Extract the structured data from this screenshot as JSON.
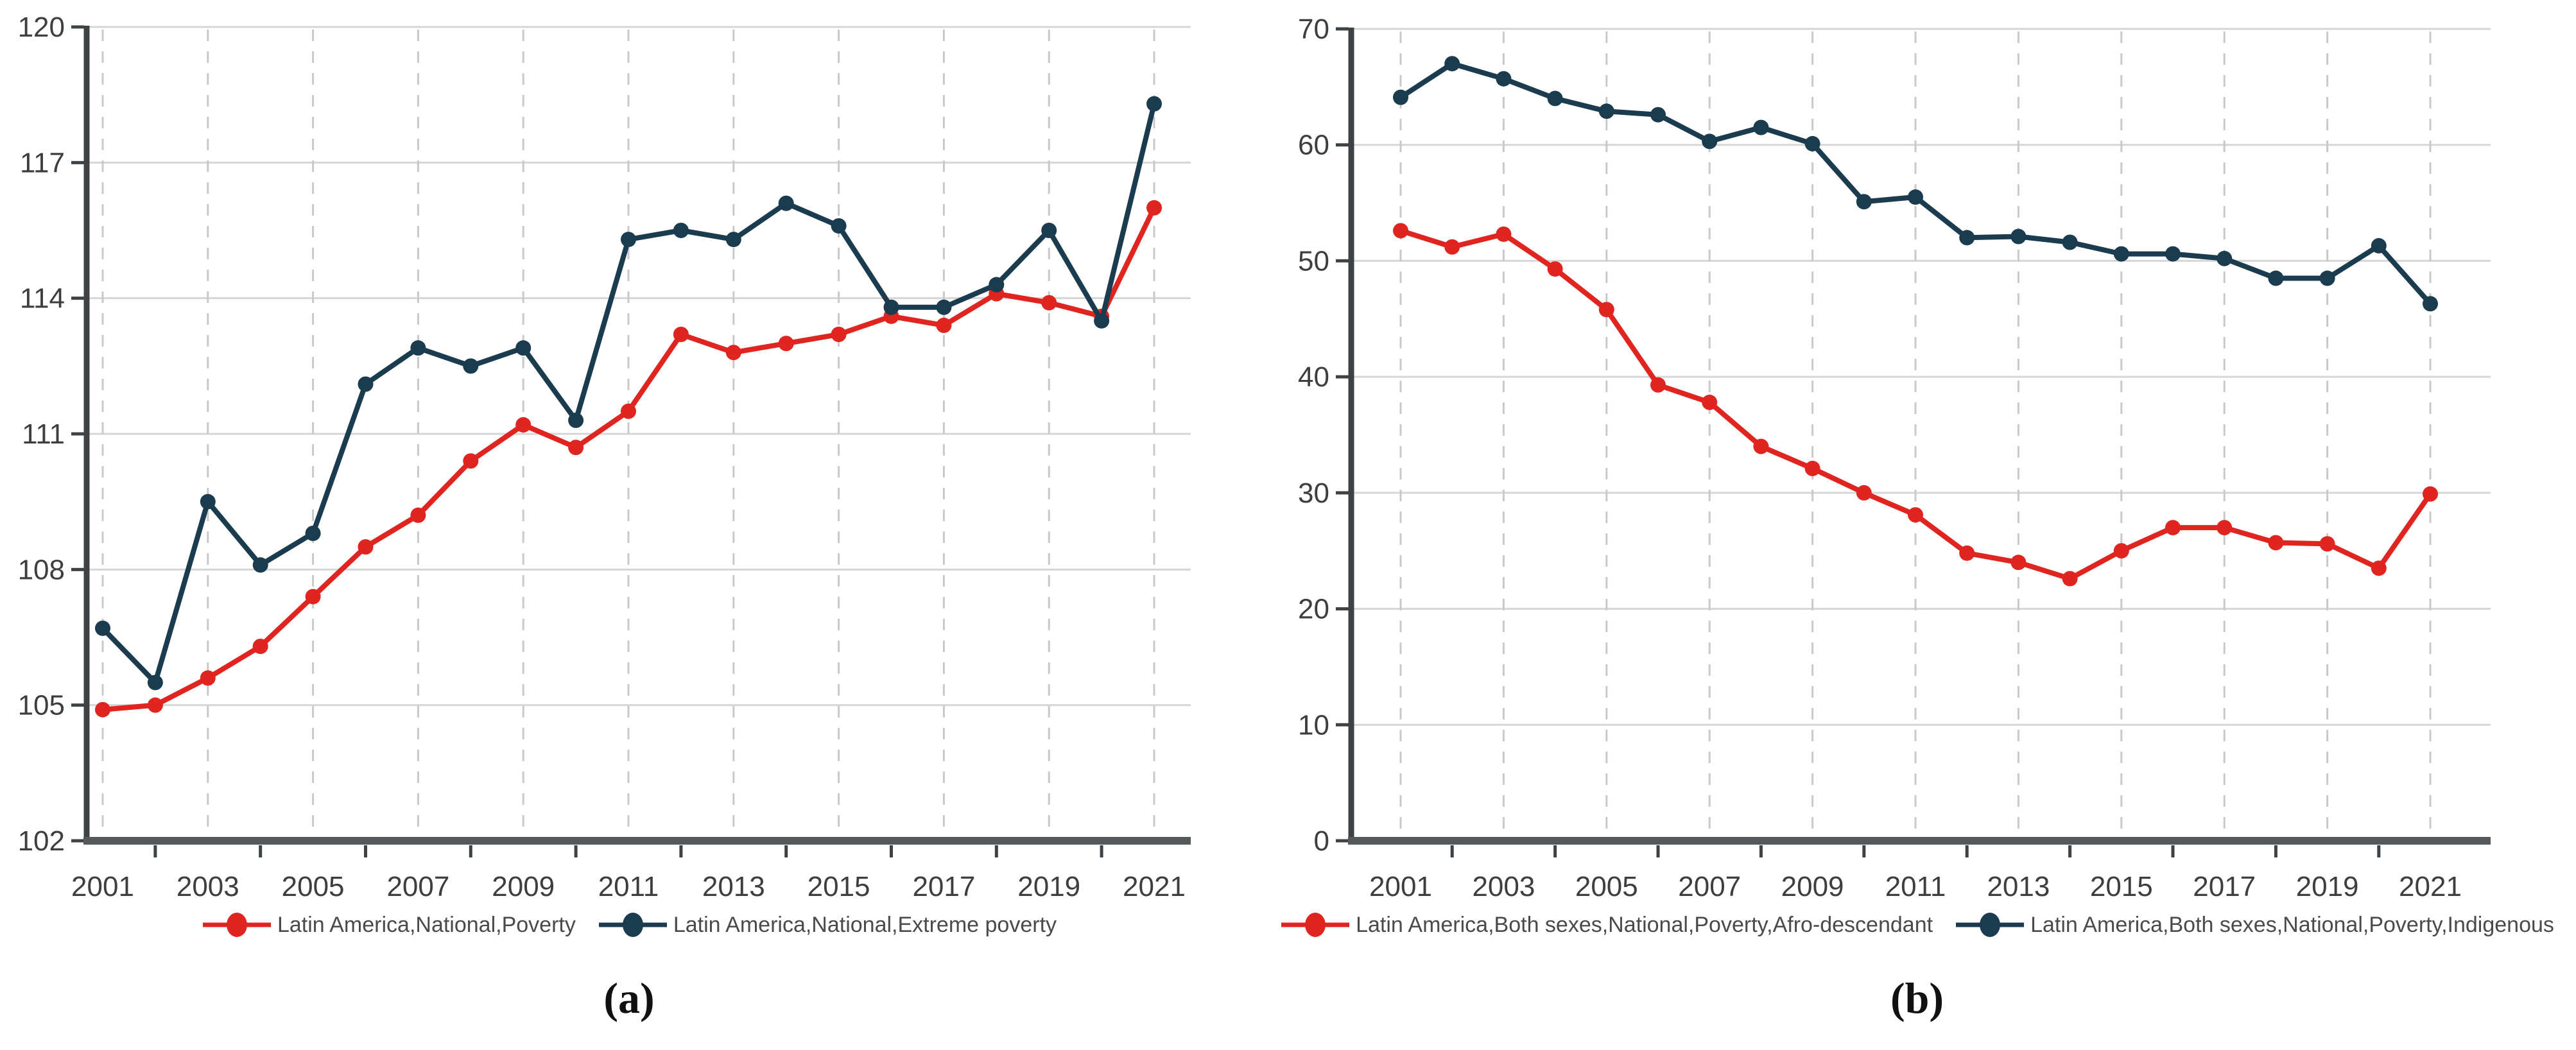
{
  "colors": {
    "poverty_red": "#e02420",
    "extreme_navy": "#1b3b4f",
    "grid_solid": "#d6d6d6",
    "grid_dashed": "#c9c9c9",
    "x_axis": "#55595c",
    "y_axis": "#3f4245",
    "tick_label": "#3e3e3e",
    "legend_text": "#4a4a4a",
    "caption_text": "#111111",
    "background": "#ffffff"
  },
  "chart_data": [
    {
      "id": "a",
      "type": "line",
      "caption": "(a)",
      "x": [
        2001,
        2002,
        2003,
        2004,
        2005,
        2006,
        2007,
        2008,
        2009,
        2010,
        2011,
        2012,
        2013,
        2014,
        2015,
        2016,
        2017,
        2018,
        2019,
        2020,
        2021
      ],
      "x_tick_labels": [
        "2001",
        "2003",
        "2005",
        "2007",
        "2009",
        "2011",
        "2013",
        "2015",
        "2017",
        "2019",
        "2021"
      ],
      "ylim": [
        102,
        120
      ],
      "y_ticks": [
        102,
        105,
        108,
        111,
        114,
        117,
        120
      ],
      "y_tick_labels": [
        "102",
        "105",
        "108",
        "111",
        "114",
        "117",
        "120"
      ],
      "grid": {
        "horizontal": "solid",
        "vertical": "dashed-at-labeled-years"
      },
      "legend_position": "bottom",
      "series": [
        {
          "name": "Latin America,National,Poverty",
          "color": "#e02420",
          "marker": "circle",
          "values": [
            104.9,
            105.0,
            105.6,
            106.3,
            107.4,
            108.5,
            109.2,
            110.4,
            111.2,
            110.7,
            111.5,
            113.2,
            112.8,
            113.0,
            113.2,
            113.6,
            113.4,
            114.1,
            113.9,
            113.6,
            116.0
          ]
        },
        {
          "name": "Latin America,National,Extreme poverty",
          "color": "#1b3b4f",
          "marker": "circle",
          "values": [
            106.7,
            105.5,
            109.5,
            108.1,
            108.8,
            112.1,
            112.9,
            112.5,
            112.9,
            111.3,
            115.3,
            115.5,
            115.3,
            116.1,
            115.6,
            113.8,
            113.8,
            114.3,
            115.5,
            113.5,
            118.3
          ]
        }
      ]
    },
    {
      "id": "b",
      "type": "line",
      "caption": "(b)",
      "x": [
        2001,
        2002,
        2003,
        2004,
        2005,
        2006,
        2007,
        2008,
        2009,
        2010,
        2011,
        2012,
        2013,
        2014,
        2015,
        2016,
        2017,
        2018,
        2019,
        2020,
        2021
      ],
      "x_tick_labels": [
        "2001",
        "2003",
        "2005",
        "2007",
        "2009",
        "2011",
        "2013",
        "2015",
        "2017",
        "2019",
        "2021"
      ],
      "ylim": [
        0,
        70
      ],
      "y_ticks": [
        0,
        10,
        20,
        30,
        40,
        50,
        60,
        70
      ],
      "y_tick_labels": [
        "0",
        "10",
        "20",
        "30",
        "40",
        "50",
        "60",
        "70"
      ],
      "grid": {
        "horizontal": "solid",
        "vertical": "dashed-at-labeled-years"
      },
      "legend_position": "bottom",
      "series": [
        {
          "name": "Latin America,Both sexes,National,Poverty,Afro-descendant",
          "color": "#e02420",
          "marker": "circle",
          "values": [
            52.6,
            51.2,
            52.3,
            49.3,
            45.8,
            39.3,
            37.8,
            34.0,
            32.1,
            30.0,
            28.1,
            24.8,
            24.0,
            22.6,
            25.0,
            27.0,
            27.0,
            25.7,
            25.6,
            23.5,
            29.9
          ]
        },
        {
          "name": "Latin America,Both sexes,National,Poverty,Indigenous",
          "color": "#1b3b4f",
          "marker": "circle",
          "values": [
            64.1,
            67.0,
            65.7,
            64.0,
            62.9,
            62.6,
            60.3,
            61.5,
            60.1,
            55.1,
            55.5,
            52.0,
            52.1,
            51.6,
            50.6,
            50.6,
            50.2,
            48.5,
            48.5,
            51.3,
            46.3
          ]
        }
      ]
    }
  ]
}
